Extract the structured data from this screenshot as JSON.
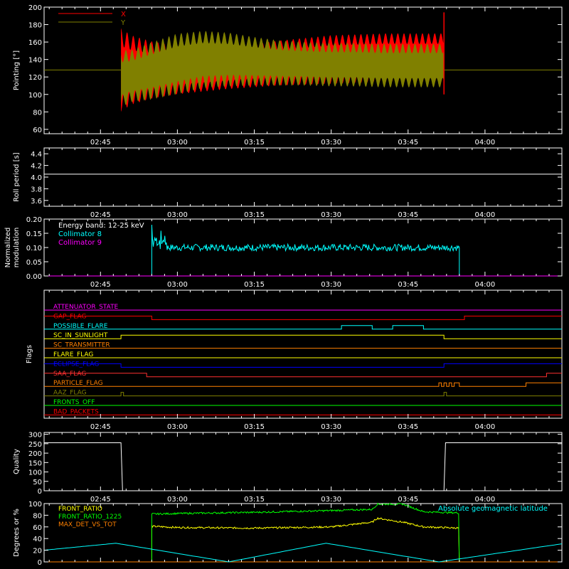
{
  "time_ticks": [
    "02:45",
    "03:00",
    "03:15",
    "03:30",
    "03:45",
    "04:00"
  ],
  "chart_data": [
    {
      "type": "line",
      "ylabel": "Pointing [°]",
      "ylim": [
        55,
        200
      ],
      "yticks": [
        "60",
        "80",
        "100",
        "120",
        "140",
        "160",
        "180",
        "200"
      ],
      "legend": [
        {
          "name": "X",
          "color": "#ff0000"
        },
        {
          "name": "Y",
          "color": "#808000"
        }
      ],
      "series": [
        {
          "name": "X",
          "color": "#ff0000",
          "x": [
            "02:49",
            "02:51",
            "02:55",
            "03:00",
            "03:05",
            "03:10",
            "03:15",
            "03:20",
            "03:25",
            "03:30",
            "03:35",
            "03:40",
            "03:45",
            "03:50",
            "03:52"
          ],
          "center": [
            128,
            128,
            128,
            128,
            128,
            130,
            133,
            136,
            138,
            140,
            141,
            142,
            142,
            142,
            142
          ],
          "amplitude": [
            48,
            40,
            33,
            28,
            25,
            24,
            25,
            26,
            27,
            28,
            28,
            28,
            28,
            28,
            28
          ]
        },
        {
          "name": "Y",
          "color": "#808000",
          "x": [
            "02:49",
            "02:51",
            "02:55",
            "03:00",
            "03:05",
            "03:10",
            "03:15",
            "03:20",
            "03:25",
            "03:30",
            "03:35",
            "03:40",
            "03:45",
            "03:50",
            "03:52"
          ],
          "center": [
            118,
            121,
            127,
            135,
            140,
            140,
            138,
            136,
            135,
            134,
            134,
            133,
            133,
            133,
            133
          ],
          "amplitude": [
            33,
            30,
            33,
            35,
            33,
            31,
            28,
            26,
            25,
            25,
            25,
            25,
            25,
            25,
            25
          ]
        }
      ],
      "baseline": {
        "value": 128,
        "color": "#808000"
      },
      "spike": {
        "x": "03:52",
        "ymax": 194
      }
    },
    {
      "type": "line",
      "ylabel": "Roll period [s]",
      "ylim": [
        3.5,
        4.5
      ],
      "yticks": [
        "3.6",
        "3.8",
        "4.0",
        "4.2",
        "4.4"
      ],
      "series": [
        {
          "name": "",
          "color": "#ffffff",
          "x": [
            "02:34",
            "04:15"
          ],
          "y": [
            4.05,
            4.05
          ]
        }
      ]
    },
    {
      "type": "line",
      "ylabel": "Normalized modulation",
      "ylim": [
        0,
        0.2
      ],
      "yticks": [
        "0.00",
        "0.05",
        "0.10",
        "0.15",
        "0.20"
      ],
      "annotation": "Energy band: 12-25 keV",
      "legend": [
        {
          "name": "Collimator 8",
          "color": "#00ffff"
        },
        {
          "name": "Collimator 9",
          "color": "#ff00ff"
        }
      ],
      "series": [
        {
          "name": "Collimator 8",
          "color": "#00ffff",
          "x": [
            "02:55",
            "03:55"
          ],
          "level": 0.1,
          "noise": 0.012,
          "initial_peak": 0.18
        },
        {
          "name": "Collimator 9",
          "color": "#ff00ff",
          "x": [
            "02:34",
            "04:15"
          ],
          "y": [
            0,
            0
          ]
        }
      ]
    },
    {
      "type": "table",
      "ylabel": "Flags",
      "flags": [
        {
          "name": "ATTENUATOR_STATE",
          "color": "#ff00ff",
          "changes": []
        },
        {
          "name": "GAP_FLAG",
          "color": "#ff0000",
          "changes": [
            [
              "02:55",
              0
            ],
            [
              "03:56",
              1
            ]
          ],
          "start": 1
        },
        {
          "name": "POSSIBLE_FLARE",
          "color": "#00ffff",
          "changes": [
            [
              "03:32",
              1
            ],
            [
              "03:38",
              0
            ],
            [
              "03:42",
              1
            ],
            [
              "03:48",
              0
            ]
          ],
          "start": 0
        },
        {
          "name": "SC_IN_SUNLIGHT",
          "color": "#ffff00",
          "changes": [
            [
              "02:49",
              1
            ],
            [
              "03:52",
              0
            ]
          ],
          "start": 0
        },
        {
          "name": "SC_TRANSMITTER",
          "color": "#ff8000",
          "changes": []
        },
        {
          "name": "FLARE_FLAG",
          "color": "#ffff00",
          "changes": []
        },
        {
          "name": "ECLIPSE_FLAG",
          "color": "#0000ff",
          "changes": [
            [
              "02:49",
              0
            ],
            [
              "03:52",
              1
            ]
          ],
          "start": 1
        },
        {
          "name": "SAA_FLAG",
          "color": "#ff3030",
          "changes": [
            [
              "02:54",
              0
            ],
            [
              "04:12",
              1
            ]
          ],
          "start": 1
        },
        {
          "name": "PARTICLE_FLAG",
          "color": "#ff8000",
          "changes": [
            [
              "03:51",
              1
            ],
            [
              "03:51.5",
              0
            ],
            [
              "03:52",
              1
            ],
            [
              "03:52.5",
              0
            ],
            [
              "03:53",
              1
            ],
            [
              "03:53.5",
              0
            ],
            [
              "03:54",
              1
            ],
            [
              "03:55",
              0
            ],
            [
              "04:08",
              1
            ]
          ],
          "start": 0
        },
        {
          "name": "AAZ_FLAG",
          "color": "#808000",
          "changes": [
            [
              "02:49",
              1
            ],
            [
              "02:49.5",
              0
            ],
            [
              "03:52",
              1
            ],
            [
              "03:52.5",
              0
            ]
          ],
          "start": 0
        },
        {
          "name": "FRONTS_OFF",
          "color": "#00ff00",
          "changes": []
        },
        {
          "name": "BAD_PACKETS",
          "color": "#ff0000",
          "changes": []
        }
      ]
    },
    {
      "type": "line",
      "ylabel": "Quality",
      "ylim": [
        0,
        310
      ],
      "yticks": [
        "0",
        "50",
        "100",
        "150",
        "200",
        "250",
        "300"
      ],
      "series": [
        {
          "name": "",
          "color": "#ffffff",
          "x": [
            "02:34",
            "02:49",
            "02:49.3",
            "03:52",
            "03:52.3",
            "04:15"
          ],
          "y": [
            255,
            255,
            0,
            0,
            255,
            255
          ]
        }
      ]
    },
    {
      "type": "line",
      "ylabel": "Degrees or %",
      "ylim": [
        0,
        100
      ],
      "yticks": [
        "0",
        "20",
        "40",
        "60",
        "80",
        "100"
      ],
      "legend": [
        {
          "name": "FRONT_RATIO",
          "color": "#ffff00"
        },
        {
          "name": "FRONT_RATIO_1225",
          "color": "#00ff00"
        },
        {
          "name": "MAX_DET_VS_TOT",
          "color": "#ff8000"
        }
      ],
      "legend_right": {
        "name": "Absolute geomagnetic latitude",
        "color": "#00ffff"
      },
      "series": [
        {
          "name": "FRONT_RATIO",
          "color": "#ffff00",
          "x": [
            "02:55",
            "03:00",
            "03:15",
            "03:30",
            "03:38",
            "03:39",
            "03:44",
            "03:48",
            "03:55"
          ],
          "y": [
            61,
            59,
            58,
            60,
            68,
            75,
            68,
            60,
            58
          ]
        },
        {
          "name": "FRONT_RATIO_1225",
          "color": "#00ff00",
          "x": [
            "02:55",
            "03:00",
            "03:15",
            "03:30",
            "03:38",
            "03:39",
            "03:44",
            "03:48",
            "03:55"
          ],
          "y": [
            82,
            83,
            85,
            88,
            90,
            99,
            99,
            86,
            84
          ]
        },
        {
          "name": "MAX_DET_VS_TOT",
          "color": "#ff8000",
          "x": [
            "02:34",
            "04:15"
          ],
          "y": [
            0,
            0
          ]
        },
        {
          "name": "Absolute geomagnetic latitude",
          "color": "#00ffff",
          "x": [
            "02:34",
            "02:48",
            "03:10",
            "03:29",
            "03:51",
            "04:15"
          ],
          "y": [
            20,
            32,
            0,
            32,
            0,
            31
          ]
        }
      ]
    }
  ]
}
